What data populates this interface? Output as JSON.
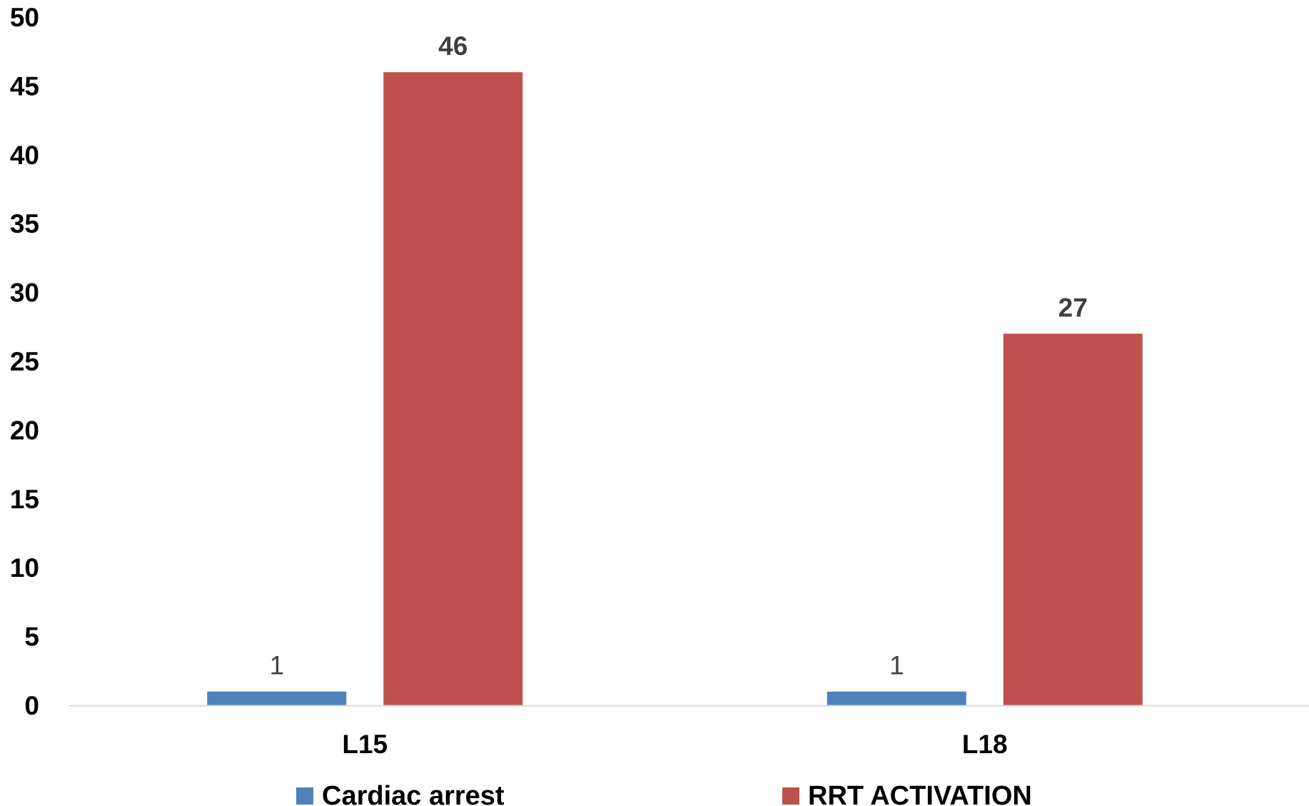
{
  "chart_data": {
    "type": "bar",
    "categories": [
      "L15",
      "L18"
    ],
    "series": [
      {
        "name": "Cardiac arrest",
        "values": [
          1,
          1
        ],
        "color": "#4f81bd",
        "label_color": "#404040",
        "label_bold": false
      },
      {
        "name": "RRT ACTIVATION",
        "values": [
          46,
          27
        ],
        "color": "#c0504d",
        "label_color": "#404040",
        "label_bold": true
      }
    ],
    "ylim": [
      0,
      50
    ],
    "ytick_step": 5,
    "yticks": [
      "0",
      "5",
      "10",
      "15",
      "20",
      "25",
      "30",
      "35",
      "40",
      "45",
      "50"
    ],
    "title": "",
    "xlabel": "",
    "ylabel": "",
    "grid": false,
    "legend_position": "bottom",
    "axis_color": "#d9d9d9"
  }
}
